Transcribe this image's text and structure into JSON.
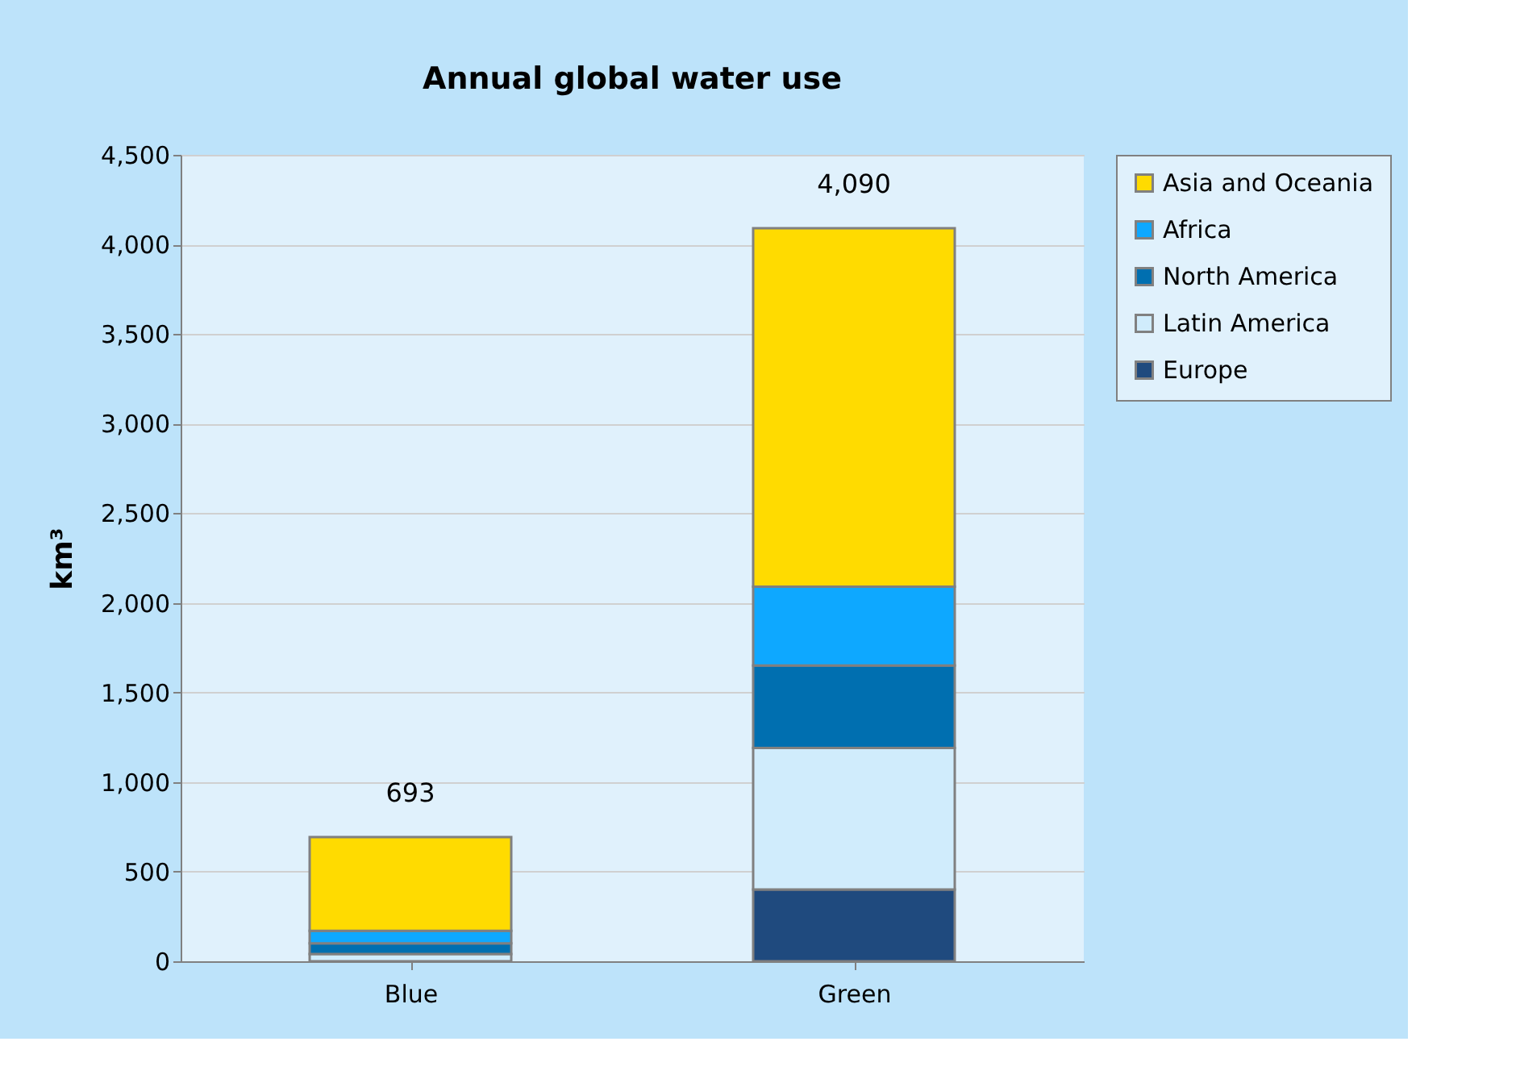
{
  "chart_data": {
    "type": "bar",
    "title": "Annual global water use",
    "ylabel": "km³",
    "stacked": true,
    "categories": [
      "Blue",
      "Green"
    ],
    "series": [
      {
        "name": "Europe",
        "color": "#1f4a7e",
        "values": [
          null,
          400
        ]
      },
      {
        "name": "Latin America",
        "color": "#d0ecfc",
        "values": [
          40,
          790
        ]
      },
      {
        "name": "North America",
        "color": "#006fb0",
        "values": [
          60,
          460
        ]
      },
      {
        "name": "Africa",
        "color": "#0ea8ff",
        "values": [
          70,
          440
        ]
      },
      {
        "name": "Asia and Oceania",
        "color": "#ffdb00",
        "values": [
          523,
          2000
        ]
      }
    ],
    "totals": [
      "693",
      "4,090"
    ],
    "ylim": [
      0,
      4500
    ],
    "yticks": [
      0,
      500,
      {
        "value": 1000,
        "label": "1,000"
      },
      {
        "value": 1500,
        "label": "1,500"
      },
      {
        "value": 2000,
        "label": "2,000"
      },
      {
        "value": 2500,
        "label": "2,500"
      },
      {
        "value": 3000,
        "label": "3,000"
      },
      {
        "value": 3500,
        "label": "3,500"
      },
      {
        "value": 4000,
        "label": "4,000"
      },
      {
        "value": 4500,
        "label": "4,500"
      }
    ],
    "grid": "y",
    "legend": "right"
  }
}
